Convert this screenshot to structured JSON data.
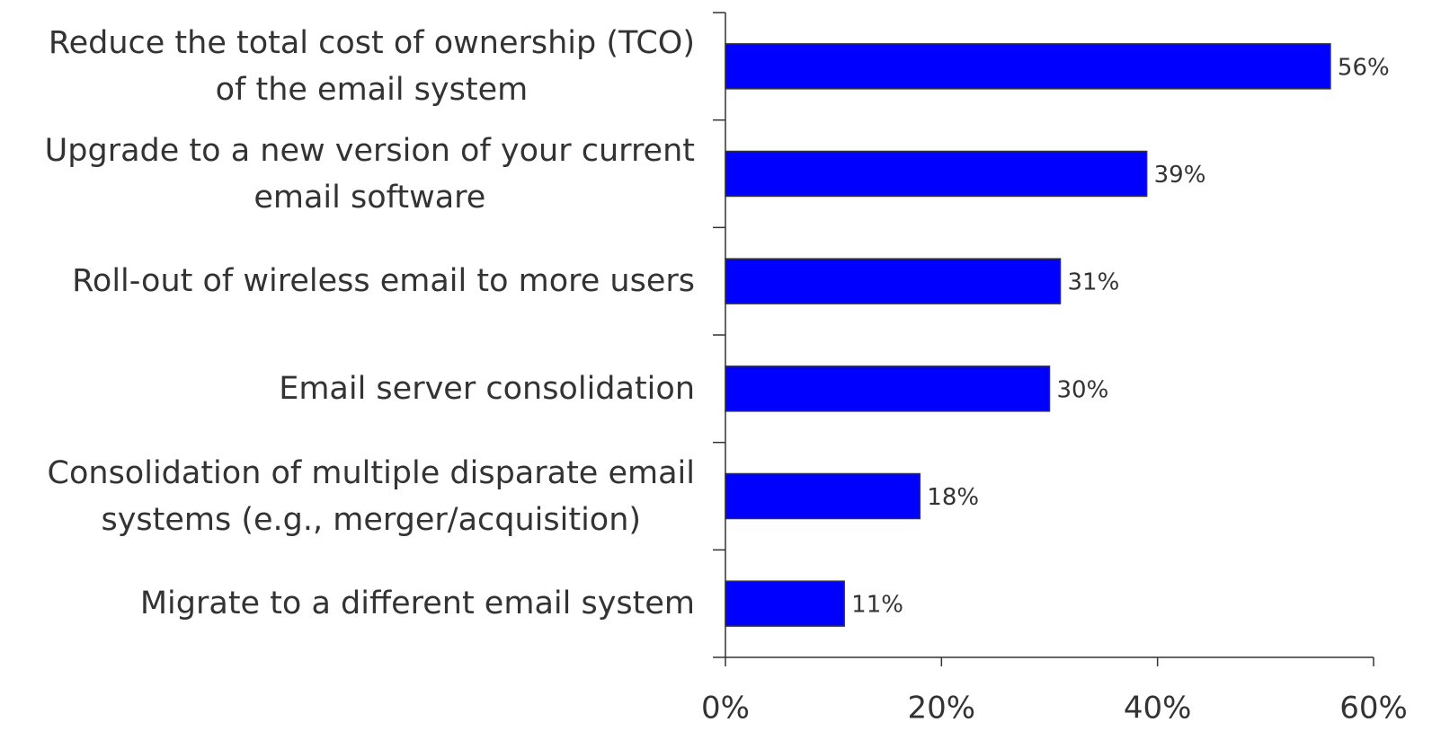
{
  "chart_data": {
    "type": "bar",
    "orientation": "horizontal",
    "categories": [
      "Reduce the total cost of ownership (TCO)\nof the email system",
      "Upgrade to a new version of your current\nemail software",
      "Roll-out of wireless email to more users",
      "Email server consolidation",
      "Consolidation of multiple disparate email\nsystems (e.g., merger/acquisition)",
      "Migrate to a different email system"
    ],
    "values": [
      56,
      39,
      31,
      30,
      18,
      11
    ],
    "value_labels": [
      "56%",
      "39%",
      "31%",
      "30%",
      "18%",
      "11%"
    ],
    "color": "#0000ff",
    "xlim": [
      0,
      60
    ],
    "xticks": [
      {
        "value": 0,
        "label": "0%"
      },
      {
        "value": 20,
        "label": "20%"
      },
      {
        "value": 40,
        "label": "40%"
      },
      {
        "value": 60,
        "label": "60%"
      }
    ]
  }
}
